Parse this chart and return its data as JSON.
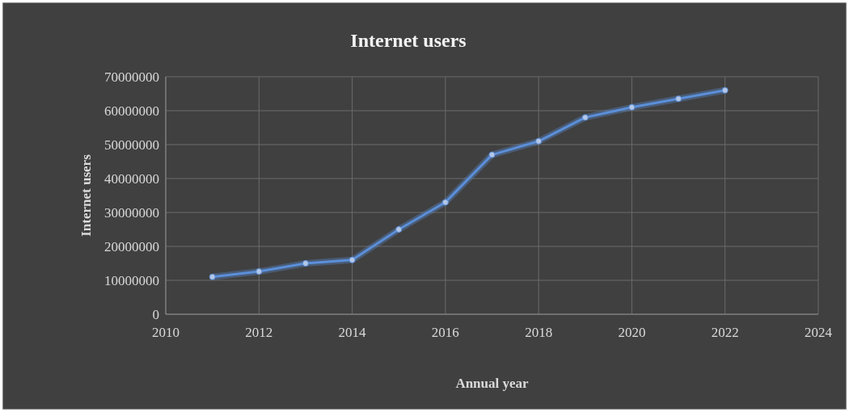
{
  "chart_data": {
    "type": "line",
    "title": "Internet users",
    "xlabel": "Annual year",
    "ylabel": "Internet users",
    "x": [
      2011,
      2012,
      2013,
      2014,
      2015,
      2016,
      2017,
      2018,
      2019,
      2020,
      2021,
      2022
    ],
    "series": [
      {
        "color": "#5b8fd9",
        "values": [
          11000000,
          12600000,
          15000000,
          16000000,
          25000000,
          33000000,
          47000000,
          51000000,
          58000000,
          61000000,
          63500000,
          66000000
        ]
      }
    ],
    "xlim": [
      2010,
      2024
    ],
    "xticks": [
      2010,
      2012,
      2014,
      2016,
      2018,
      2020,
      2022,
      2024
    ],
    "ylim": [
      0,
      70000000
    ],
    "yticks": [
      0,
      10000000,
      20000000,
      30000000,
      40000000,
      50000000,
      60000000,
      70000000
    ],
    "grid": true,
    "marker": "circle",
    "line_style": "solid"
  }
}
